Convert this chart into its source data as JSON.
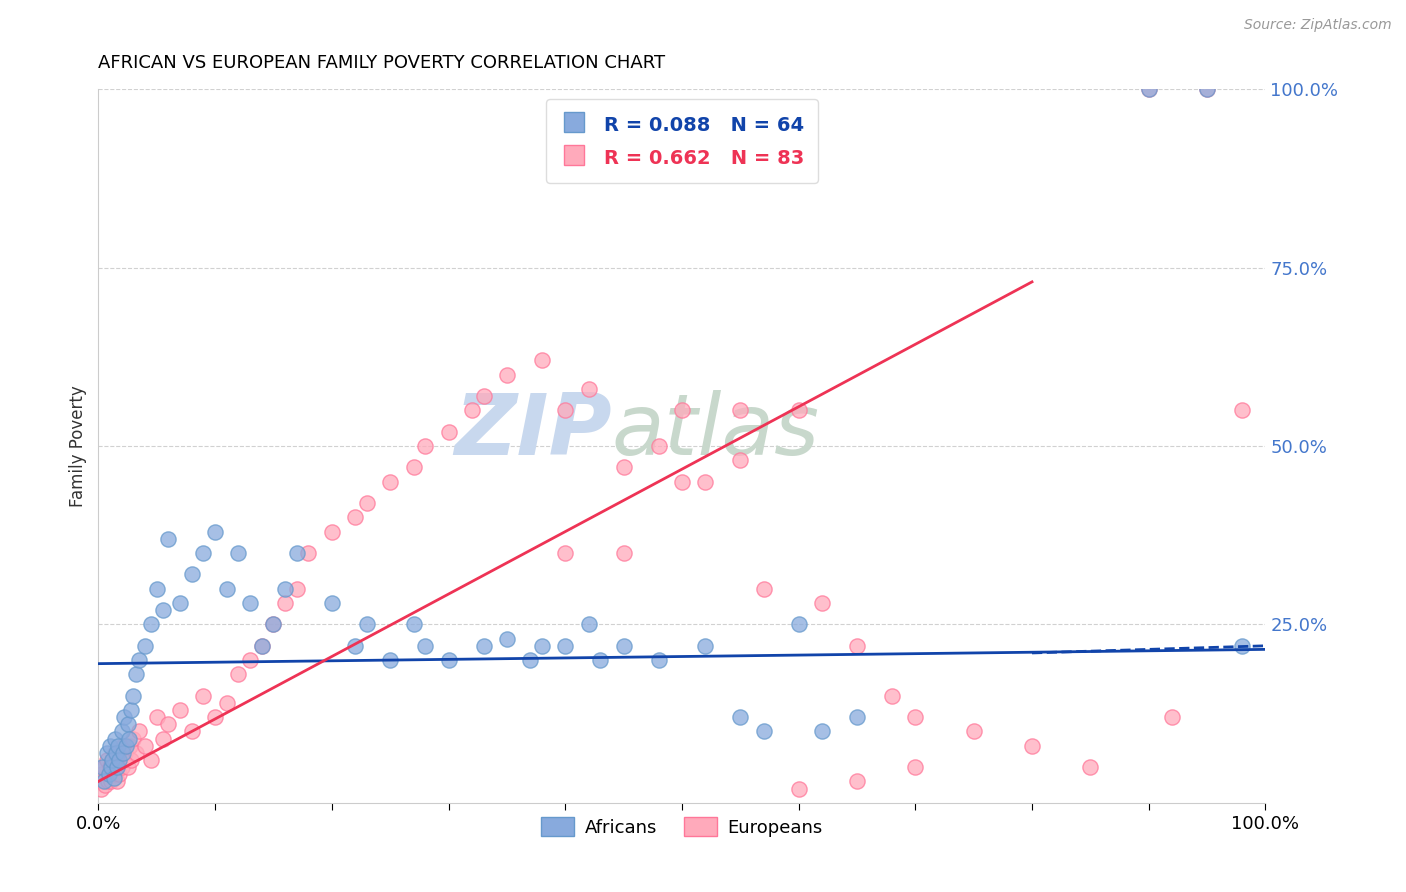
{
  "title": "AFRICAN VS EUROPEAN FAMILY POVERTY CORRELATION CHART",
  "source": "Source: ZipAtlas.com",
  "ylabel": "Family Poverty",
  "ytick_labels": [
    "100.0%",
    "75.0%",
    "50.0%",
    "25.0%"
  ],
  "ytick_values": [
    100,
    75,
    50,
    25
  ],
  "legend_africans": "Africans",
  "legend_europeans": "Europeans",
  "r_africans": "R = 0.088",
  "n_africans": "N = 64",
  "r_europeans": "R = 0.662",
  "n_europeans": "N = 83",
  "color_africans": "#88aadd",
  "color_africans_edge": "#6699cc",
  "color_europeans": "#ffaabb",
  "color_europeans_edge": "#ff7799",
  "color_line_africans": "#1144aa",
  "color_line_europeans": "#ee3355",
  "watermark_zip": "ZIP",
  "watermark_atlas": "atlas",
  "watermark_color_zip": "#c8d8ee",
  "watermark_color_atlas": "#c8d8cc",
  "africans_x": [
    0.3,
    0.5,
    0.7,
    0.9,
    1.0,
    1.1,
    1.2,
    1.3,
    1.4,
    1.5,
    1.6,
    1.7,
    1.8,
    2.0,
    2.1,
    2.2,
    2.4,
    2.5,
    2.6,
    2.8,
    3.0,
    3.2,
    3.5,
    4.0,
    4.5,
    5.0,
    5.5,
    6.0,
    7.0,
    8.0,
    9.0,
    10.0,
    11.0,
    12.0,
    13.0,
    14.0,
    15.0,
    16.0,
    17.0,
    20.0,
    22.0,
    23.0,
    25.0,
    27.0,
    28.0,
    30.0,
    33.0,
    35.0,
    37.0,
    38.0,
    40.0,
    42.0,
    43.0,
    45.0,
    48.0,
    52.0,
    55.0,
    57.0,
    60.0,
    62.0,
    65.0,
    90.0,
    95.0,
    98.0
  ],
  "africans_y": [
    5.0,
    3.0,
    7.0,
    4.0,
    8.0,
    5.0,
    6.0,
    3.5,
    9.0,
    7.0,
    5.0,
    8.0,
    6.0,
    10.0,
    7.0,
    12.0,
    8.0,
    11.0,
    9.0,
    13.0,
    15.0,
    18.0,
    20.0,
    22.0,
    25.0,
    30.0,
    27.0,
    37.0,
    28.0,
    32.0,
    35.0,
    38.0,
    30.0,
    35.0,
    28.0,
    22.0,
    25.0,
    30.0,
    35.0,
    28.0,
    22.0,
    25.0,
    20.0,
    25.0,
    22.0,
    20.0,
    22.0,
    23.0,
    20.0,
    22.0,
    22.0,
    25.0,
    20.0,
    22.0,
    20.0,
    22.0,
    12.0,
    10.0,
    25.0,
    10.0,
    12.0,
    100.0,
    100.0,
    22.0
  ],
  "europeans_x": [
    0.2,
    0.3,
    0.4,
    0.5,
    0.6,
    0.7,
    0.8,
    0.9,
    1.0,
    1.1,
    1.2,
    1.3,
    1.4,
    1.5,
    1.6,
    1.7,
    1.8,
    1.9,
    2.0,
    2.1,
    2.2,
    2.3,
    2.5,
    2.7,
    2.8,
    3.0,
    3.2,
    3.5,
    4.0,
    4.5,
    5.0,
    5.5,
    6.0,
    7.0,
    8.0,
    9.0,
    10.0,
    11.0,
    12.0,
    13.0,
    14.0,
    15.0,
    16.0,
    17.0,
    18.0,
    20.0,
    22.0,
    23.0,
    25.0,
    27.0,
    28.0,
    30.0,
    32.0,
    33.0,
    35.0,
    38.0,
    40.0,
    42.0,
    45.0,
    48.0,
    50.0,
    52.0,
    55.0,
    57.0,
    60.0,
    62.0,
    65.0,
    68.0,
    70.0,
    75.0,
    80.0,
    85.0,
    90.0,
    92.0,
    95.0,
    98.0,
    60.0,
    65.0,
    70.0,
    55.0,
    50.0,
    45.0,
    40.0
  ],
  "europeans_y": [
    2.0,
    4.0,
    3.0,
    5.0,
    2.5,
    6.0,
    3.0,
    4.0,
    5.0,
    3.0,
    6.0,
    4.0,
    7.0,
    5.0,
    3.0,
    6.0,
    4.0,
    7.0,
    5.0,
    8.0,
    6.0,
    7.0,
    5.0,
    8.0,
    6.0,
    9.0,
    7.0,
    10.0,
    8.0,
    6.0,
    12.0,
    9.0,
    11.0,
    13.0,
    10.0,
    15.0,
    12.0,
    14.0,
    18.0,
    20.0,
    22.0,
    25.0,
    28.0,
    30.0,
    35.0,
    38.0,
    40.0,
    42.0,
    45.0,
    47.0,
    50.0,
    52.0,
    55.0,
    57.0,
    60.0,
    62.0,
    55.0,
    58.0,
    47.0,
    50.0,
    55.0,
    45.0,
    48.0,
    30.0,
    55.0,
    28.0,
    22.0,
    15.0,
    12.0,
    10.0,
    8.0,
    5.0,
    100.0,
    12.0,
    100.0,
    55.0,
    2.0,
    3.0,
    5.0,
    55.0,
    45.0,
    35.0,
    35.0
  ],
  "xlim": [
    0,
    100
  ],
  "ylim": [
    0,
    100
  ],
  "africa_line": [
    0,
    100,
    19.5,
    21.5
  ],
  "europa_line": [
    0,
    80,
    3.0,
    73.0
  ],
  "africa_line_dashed": [
    80,
    100,
    21.0,
    22.0
  ]
}
